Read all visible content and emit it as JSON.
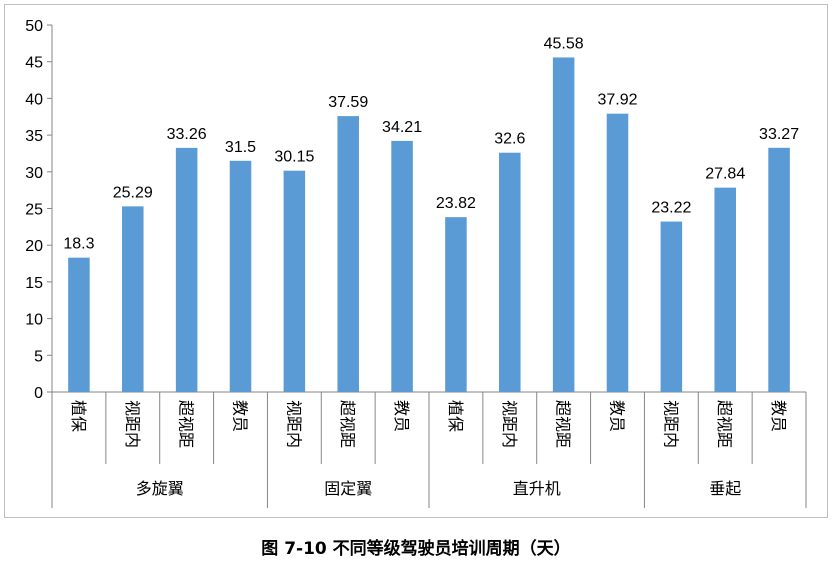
{
  "caption": "图 7-10 不同等级驾驶员培训周期（天）",
  "chart_data": {
    "type": "bar",
    "title": "",
    "xlabel": "",
    "ylabel": "",
    "ylim": [
      0,
      50
    ],
    "yticks": [
      0,
      5,
      10,
      15,
      20,
      25,
      30,
      35,
      40,
      45,
      50
    ],
    "grid": false,
    "bar_color": "#5b9bd5",
    "groups": [
      {
        "name": "多旋翼",
        "categories": [
          "植保",
          "视距内",
          "超视距",
          "教员"
        ],
        "values": [
          18.3,
          25.29,
          33.26,
          31.5
        ]
      },
      {
        "name": "固定翼",
        "categories": [
          "视距内",
          "超视距",
          "教员"
        ],
        "values": [
          30.15,
          37.59,
          34.21
        ]
      },
      {
        "name": "直升机",
        "categories": [
          "植保",
          "视距内",
          "超视距",
          "教员"
        ],
        "values": [
          23.82,
          32.6,
          45.58,
          37.92
        ]
      },
      {
        "name": "垂起",
        "categories": [
          "视距内",
          "超视距",
          "教员"
        ],
        "values": [
          23.22,
          27.84,
          33.27
        ]
      }
    ],
    "data_labels": [
      [
        "18.3",
        "25.29",
        "33.26",
        "31.5"
      ],
      [
        "30.15",
        "37.59",
        "34.21"
      ],
      [
        "23.82",
        "32.6",
        "45.58",
        "37.92"
      ],
      [
        "23.22",
        "27.84",
        "33.27"
      ]
    ]
  }
}
